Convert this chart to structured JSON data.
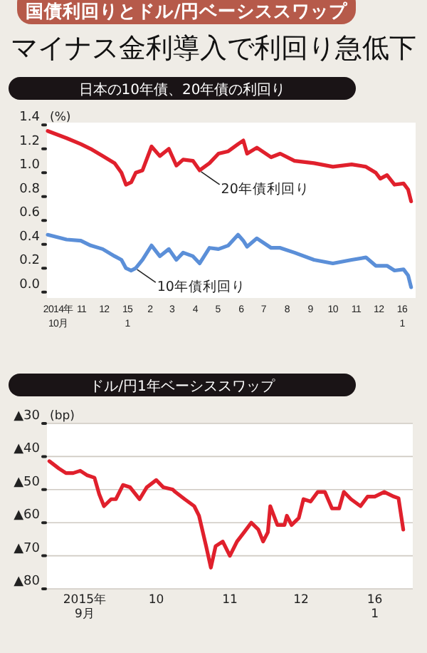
{
  "chart_data": [
    {
      "type": "other",
      "title": "国債利回りとドル/円ベーシススワップ",
      "subtitle": "マイナス金利導入で利回り急低下"
    },
    {
      "type": "line",
      "title": "日本の10年債、20年債の利回り",
      "ylabel": "(%)",
      "x": [
        "2014-10-02",
        "2014-10-27",
        "2014-11-15",
        "2014-11-28",
        "2014-12-14",
        "2014-12-30",
        "2015-01-08",
        "2015-01-14",
        "2015-01-21",
        "2015-01-27",
        "2015-02-05",
        "2015-02-17",
        "2015-02-28",
        "2015-03-12",
        "2015-03-22",
        "2015-03-31",
        "2015-04-13",
        "2015-04-22",
        "2015-05-05",
        "2015-05-17",
        "2015-05-30",
        "2015-06-12",
        "2015-06-19",
        "2015-06-24",
        "2015-07-07",
        "2015-07-26",
        "2015-08-07",
        "2015-08-26",
        "2015-09-21",
        "2015-10-16",
        "2015-11-10",
        "2015-11-29",
        "2015-12-12",
        "2015-12-18",
        "2015-12-27",
        "2016-01-06",
        "2016-01-18",
        "2016-01-24",
        "2016-01-28"
      ],
      "series": [
        {
          "color": "#e0202c",
          "values": [
            1.35,
            1.29,
            1.24,
            1.2,
            1.14,
            1.08,
            1.0,
            0.9,
            0.92,
            1.0,
            1.02,
            1.22,
            1.14,
            1.2,
            1.06,
            1.11,
            1.1,
            1.02,
            1.08,
            1.16,
            1.18,
            1.24,
            1.27,
            1.16,
            1.21,
            1.13,
            1.16,
            1.1,
            1.08,
            1.05,
            1.07,
            1.05,
            1.0,
            0.95,
            0.98,
            0.9,
            0.91,
            0.86,
            0.76
          ]
        },
        {
          "color": "#5b8fd8",
          "values": [
            0.48,
            0.44,
            0.43,
            0.39,
            0.36,
            0.3,
            0.27,
            0.2,
            0.18,
            0.2,
            0.27,
            0.39,
            0.3,
            0.36,
            0.27,
            0.33,
            0.3,
            0.24,
            0.37,
            0.36,
            0.39,
            0.48,
            0.43,
            0.38,
            0.45,
            0.37,
            0.37,
            0.33,
            0.27,
            0.24,
            0.27,
            0.29,
            0.22,
            0.22,
            0.22,
            0.18,
            0.19,
            0.14,
            0.04
          ]
        }
      ],
      "xlim": [
        "2014-10-01",
        "2016-02-03"
      ],
      "xticks": [
        {
          "value": "2014-10-16",
          "label": "2014年\n10月"
        },
        {
          "value": "2014-11-16",
          "label": "11"
        },
        {
          "value": "2014-12-16",
          "label": "12"
        },
        {
          "value": "2015-01-16",
          "label": "15\n1"
        },
        {
          "value": "2015-02-15",
          "label": "2"
        },
        {
          "value": "2015-03-16",
          "label": "3"
        },
        {
          "value": "2015-04-16",
          "label": "4"
        },
        {
          "value": "2015-05-16",
          "label": "5"
        },
        {
          "value": "2015-06-16",
          "label": "6"
        },
        {
          "value": "2015-07-16",
          "label": "7"
        },
        {
          "value": "2015-08-16",
          "label": "8"
        },
        {
          "value": "2015-09-16",
          "label": "9"
        },
        {
          "value": "2015-10-16",
          "label": "10"
        },
        {
          "value": "2015-11-16",
          "label": "11"
        },
        {
          "value": "2015-12-16",
          "label": "12"
        },
        {
          "value": "2016-01-16",
          "label": "16\n1"
        }
      ],
      "ylim": [
        -0.05,
        1.42
      ],
      "yticks": [
        {
          "value": 0,
          "label": "0.0"
        },
        {
          "value": 0.2,
          "label": "0.2"
        },
        {
          "value": 0.4,
          "label": "0.4"
        },
        {
          "value": 0.6,
          "label": "0.6"
        },
        {
          "value": 0.8,
          "label": "0.8"
        },
        {
          "value": 1,
          "label": "1.0"
        },
        {
          "value": 1.2,
          "label": "1.2"
        },
        {
          "value": 1.4,
          "label": "1.4"
        }
      ],
      "annotations": [
        {
          "text": "20年債利回り",
          "x": "2015-04-22",
          "y": 1.02
        },
        {
          "text": "10年債利回り",
          "x": "2015-01-27",
          "y": 0.2
        }
      ]
    },
    {
      "type": "line",
      "title": "ドル/円1年ベーシススワップ",
      "ylabel": "(bp)",
      "grid": "y",
      "x": [
        "2015-09-01",
        "2015-09-05",
        "2015-09-08",
        "2015-09-11",
        "2015-09-14",
        "2015-09-17",
        "2015-09-20",
        "2015-09-22",
        "2015-09-24",
        "2015-09-27",
        "2015-09-29",
        "2015-10-02",
        "2015-10-05",
        "2015-10-09",
        "2015-10-12",
        "2015-10-16",
        "2015-10-19",
        "2015-10-23",
        "2015-10-24",
        "2015-10-28",
        "2015-11-01",
        "2015-11-03",
        "2015-11-06",
        "2015-11-08",
        "2015-11-10",
        "2015-11-13",
        "2015-11-16",
        "2015-11-19",
        "2015-11-22",
        "2015-11-25",
        "2015-11-28",
        "2015-11-30",
        "2015-12-02",
        "2015-12-03",
        "2015-12-06",
        "2015-12-09",
        "2015-12-10",
        "2015-12-12",
        "2015-12-15",
        "2015-12-17",
        "2015-12-20",
        "2015-12-23",
        "2015-12-26",
        "2015-12-29",
        "2016-01-01",
        "2016-01-03",
        "2016-01-06",
        "2016-01-10",
        "2016-01-13",
        "2016-01-16",
        "2016-01-20",
        "2016-01-24",
        "2016-01-26",
        "2016-01-28"
      ],
      "series": [
        {
          "color": "#e0202c",
          "values": [
            -41.4,
            -43.6,
            -45,
            -45,
            -44.3,
            -45.7,
            -46.4,
            -51.4,
            -55,
            -52.9,
            -52.9,
            -48.6,
            -49.3,
            -52.9,
            -49.3,
            -47.1,
            -49.3,
            -50,
            -50.7,
            -52.9,
            -55,
            -57.9,
            -67.1,
            -73.6,
            -67.1,
            -65.7,
            -70,
            -65.7,
            -62.9,
            -60,
            -62.1,
            -65.7,
            -62.9,
            -55,
            -60.7,
            -60.7,
            -57.9,
            -60.7,
            -58.6,
            -52.9,
            -53.6,
            -50.7,
            -50.7,
            -55.7,
            -55.7,
            -50.7,
            -52.9,
            -55,
            -52.1,
            -52.1,
            -50.7,
            -52.1,
            -52.6,
            -62.1
          ]
        }
      ],
      "xlim": [
        "2015-08-31",
        "2016-02-01"
      ],
      "xticks": [
        {
          "value": "2015-09-16",
          "label": "2015年\n9月"
        },
        {
          "value": "2015-10-16",
          "label": "10"
        },
        {
          "value": "2015-11-16",
          "label": "11"
        },
        {
          "value": "2015-12-16",
          "label": "12"
        },
        {
          "value": "2016-01-16",
          "label": "16\n1"
        }
      ],
      "ylim": [
        -80,
        -30
      ],
      "yticks": [
        {
          "value": -30,
          "label": "▲30"
        },
        {
          "value": -40,
          "label": "▲40"
        },
        {
          "value": -50,
          "label": "▲50"
        },
        {
          "value": -60,
          "label": "▲60"
        },
        {
          "value": -70,
          "label": "▲70"
        },
        {
          "value": -80,
          "label": "▲80"
        }
      ]
    }
  ]
}
